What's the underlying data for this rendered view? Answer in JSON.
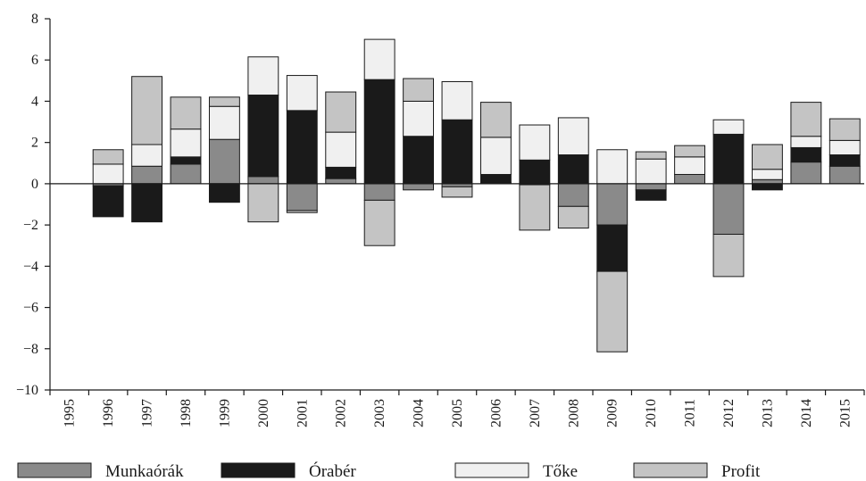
{
  "chart_data": {
    "type": "bar",
    "stacked": true,
    "categories": [
      "1995",
      "1996",
      "1997",
      "1998",
      "1999",
      "2000",
      "2001",
      "2002",
      "2003",
      "2004",
      "2005",
      "2006",
      "2007",
      "2008",
      "2009",
      "2010",
      "2011",
      "2012",
      "2013",
      "2014",
      "2015"
    ],
    "ylim": [
      -10,
      8
    ],
    "yticks": [
      -10,
      -8,
      -6,
      -4,
      -2,
      0,
      2,
      4,
      6,
      8
    ],
    "ytick_labels": [
      "−10",
      "−8",
      "−6",
      "−4",
      "−2",
      "0",
      "2",
      "4",
      "6",
      "8"
    ],
    "grid": false,
    "legend_position": "bottom",
    "series": [
      {
        "name": "Munkaórák",
        "color": "#8a8a8a",
        "values": [
          0,
          -0.1,
          0.85,
          0.95,
          2.15,
          0.35,
          -1.3,
          0.25,
          -0.8,
          -0.3,
          -0.15,
          0.05,
          -0.05,
          -1.1,
          -2.0,
          -0.3,
          0.45,
          -2.45,
          0.2,
          1.05,
          0.85
        ]
      },
      {
        "name": "Órabér",
        "color": "#1a1a1a",
        "values": [
          0,
          -1.5,
          -1.85,
          0.35,
          -0.9,
          3.95,
          3.55,
          0.55,
          5.05,
          2.3,
          3.1,
          0.4,
          1.15,
          1.4,
          -2.25,
          -0.5,
          0,
          2.4,
          -0.3,
          0.7,
          0.55
        ]
      },
      {
        "name": "Tőke",
        "color": "#f0f0f0",
        "values": [
          0,
          0.95,
          1.05,
          1.35,
          1.6,
          1.85,
          1.7,
          1.7,
          1.95,
          1.7,
          1.85,
          1.8,
          1.7,
          1.8,
          1.65,
          1.2,
          0.85,
          0.7,
          0.5,
          0.55,
          0.7
        ]
      },
      {
        "name": "Profit",
        "color": "#c4c4c4",
        "values": [
          0,
          0.7,
          3.3,
          1.55,
          0.45,
          -1.85,
          -0.1,
          1.95,
          -2.2,
          1.1,
          -0.5,
          1.7,
          -2.2,
          -1.05,
          -3.9,
          0.35,
          0.55,
          -2.05,
          1.2,
          1.65,
          1.05
        ]
      }
    ]
  }
}
